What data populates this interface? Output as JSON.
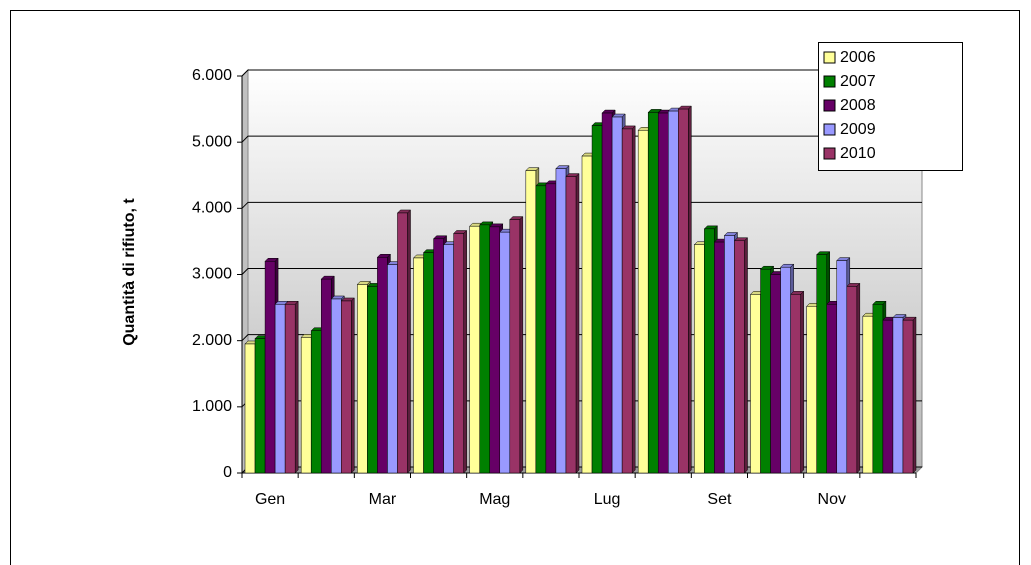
{
  "chart_data": {
    "type": "bar",
    "y_label": "Quantità di rifiuto, t",
    "categories": [
      "Gen",
      null,
      "Mar",
      null,
      "Mag",
      null,
      "Lug",
      null,
      "Set",
      null,
      "Nov",
      null
    ],
    "series": [
      {
        "name": "2006",
        "color": "#ffff99",
        "values": [
          1950,
          2050,
          2850,
          3250,
          3730,
          4570,
          4790,
          5180,
          3450,
          2700,
          2520,
          2370
        ]
      },
      {
        "name": "2007",
        "color": "#008000",
        "values": [
          2030,
          2150,
          2820,
          3330,
          3750,
          4340,
          5250,
          5450,
          3690,
          3080,
          3300,
          2550
        ]
      },
      {
        "name": "2008",
        "color": "#660066",
        "values": [
          3200,
          2930,
          3260,
          3540,
          3720,
          4370,
          5440,
          5440,
          3490,
          3000,
          2550,
          2310
        ]
      },
      {
        "name": "2009",
        "color": "#9999ff",
        "values": [
          2550,
          2630,
          3150,
          3450,
          3640,
          4600,
          5380,
          5470,
          3590,
          3110,
          3210,
          2350
        ]
      },
      {
        "name": "2010",
        "color": "#993366",
        "values": [
          2550,
          2600,
          3930,
          3620,
          3830,
          4480,
          5200,
          5500,
          3510,
          2700,
          2820,
          2310
        ]
      }
    ],
    "ylim": [
      0,
      6000
    ],
    "yticks": [
      0,
      {
        "value": 1000,
        "label": "1.000"
      },
      {
        "value": 2000,
        "label": "2.000"
      },
      {
        "value": 3000,
        "label": "3.000"
      },
      {
        "value": 4000,
        "label": "4.000"
      },
      {
        "value": 5000,
        "label": "5.000"
      },
      {
        "value": 6000,
        "label": "6.000"
      }
    ],
    "grid": true,
    "legend": "top-right"
  }
}
